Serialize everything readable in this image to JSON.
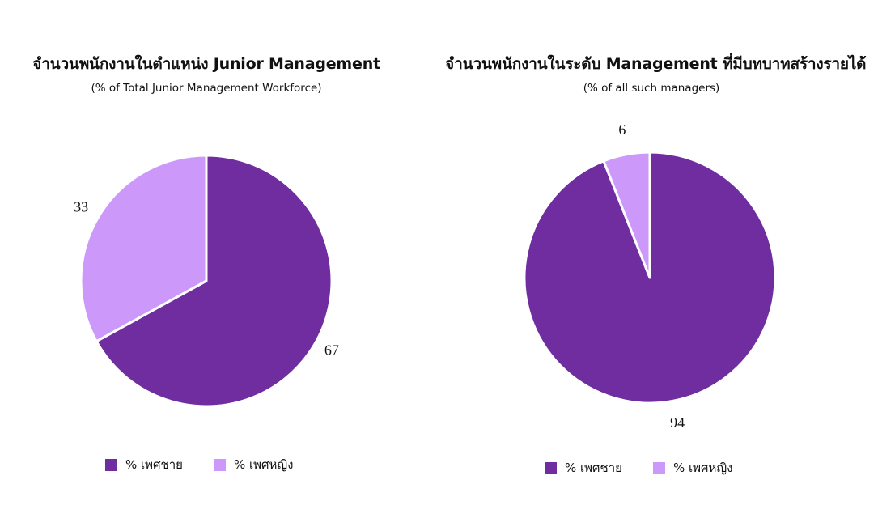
{
  "colors": {
    "male": "#6f2da0",
    "female": "#cc99fb",
    "stroke": "#ffffff"
  },
  "chart_data": [
    {
      "type": "pie",
      "title": "จำนวนพนักงานในตำแหน่ง Junior Management",
      "subtitle": "(% of Total Junior Management Workforce)",
      "categories": [
        "% เพศชาย",
        "% เพศหญิง"
      ],
      "values": [
        67,
        33
      ],
      "legend": "bottom"
    },
    {
      "type": "pie",
      "title": "จำนวนพนักงานในระดับ Management ที่มีบทบาทสร้างรายได้",
      "subtitle": "(% of all such managers)",
      "categories": [
        "% เพศชาย",
        "% เพศหญิง"
      ],
      "values": [
        94,
        6
      ],
      "legend": "bottom"
    }
  ]
}
